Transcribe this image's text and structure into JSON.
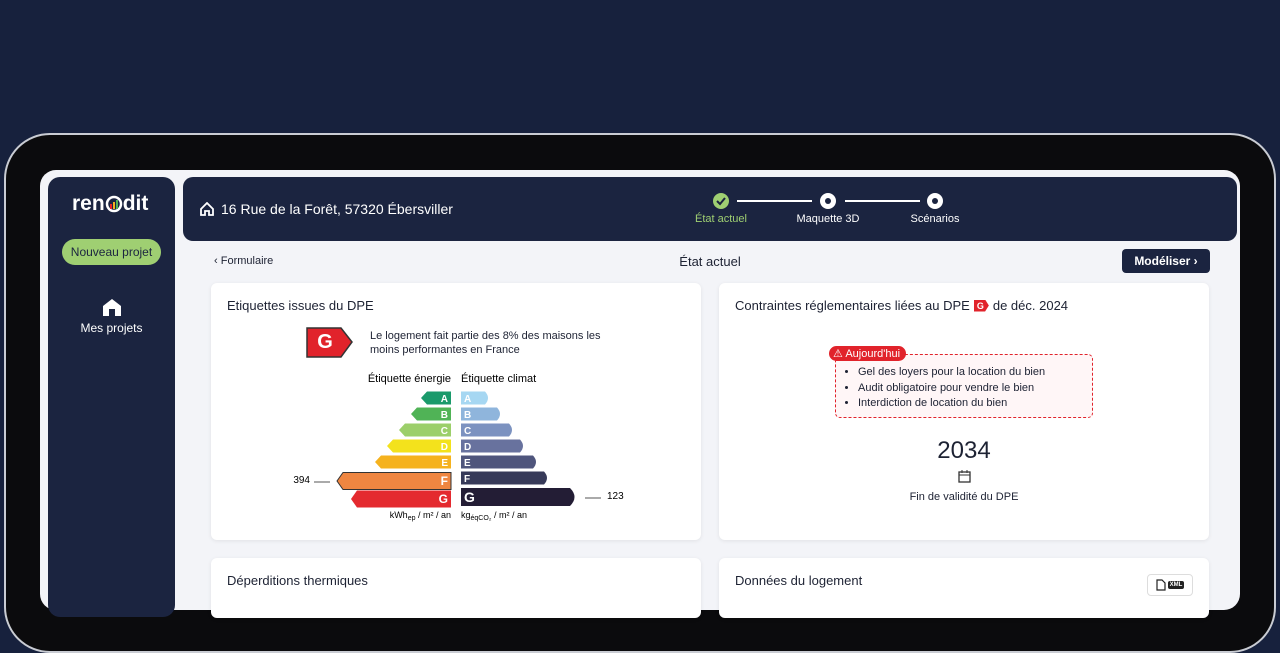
{
  "sidebar": {
    "logo_left": "ren",
    "logo_right": "dit",
    "new_project": "Nouveau projet",
    "projects": "Mes projets"
  },
  "header": {
    "address": "16 Rue de la Forêt, 57320 Ébersviller",
    "steps": [
      "État actuel",
      "Maquette 3D",
      "Scénarios"
    ]
  },
  "toolbar": {
    "back": "Formulaire",
    "title": "État actuel",
    "action": "Modéliser"
  },
  "dpe_card": {
    "title": "Etiquettes issues du DPE",
    "grade": "G",
    "note": "Le logement fait partie des 8% des maisons les moins performantes en France",
    "energy_label": "Étiquette énergie",
    "climate_label": "Étiquette climat",
    "energy_classes": [
      "A",
      "B",
      "C",
      "D",
      "E",
      "F",
      "G"
    ],
    "climate_classes": [
      "A",
      "B",
      "C",
      "D",
      "E",
      "F",
      "G"
    ],
    "energy_value": "394",
    "climate_value": "123",
    "energy_unit": {
      "base": "kWh",
      "sub": "ep",
      "rest": " / m² / an"
    },
    "climate_unit": {
      "base": "kg",
      "sub": "éqCO₂",
      "rest": " / m² / an"
    }
  },
  "constraints_card": {
    "title": "Contraintes réglementaires liées au DPE",
    "grade": "G",
    "suffix": "de déc. 2024",
    "tag": "Aujourd'hui",
    "items": [
      "Gel des loyers pour la location du bien",
      "Audit obligatoire pour vendre le bien",
      "Interdiction de location du bien"
    ],
    "year": "2034",
    "caption": "Fin de validité du DPE"
  },
  "bottom_cards": {
    "left_title": "Déperditions thermiques",
    "right_title": "Données du logement",
    "xml": "XML"
  }
}
